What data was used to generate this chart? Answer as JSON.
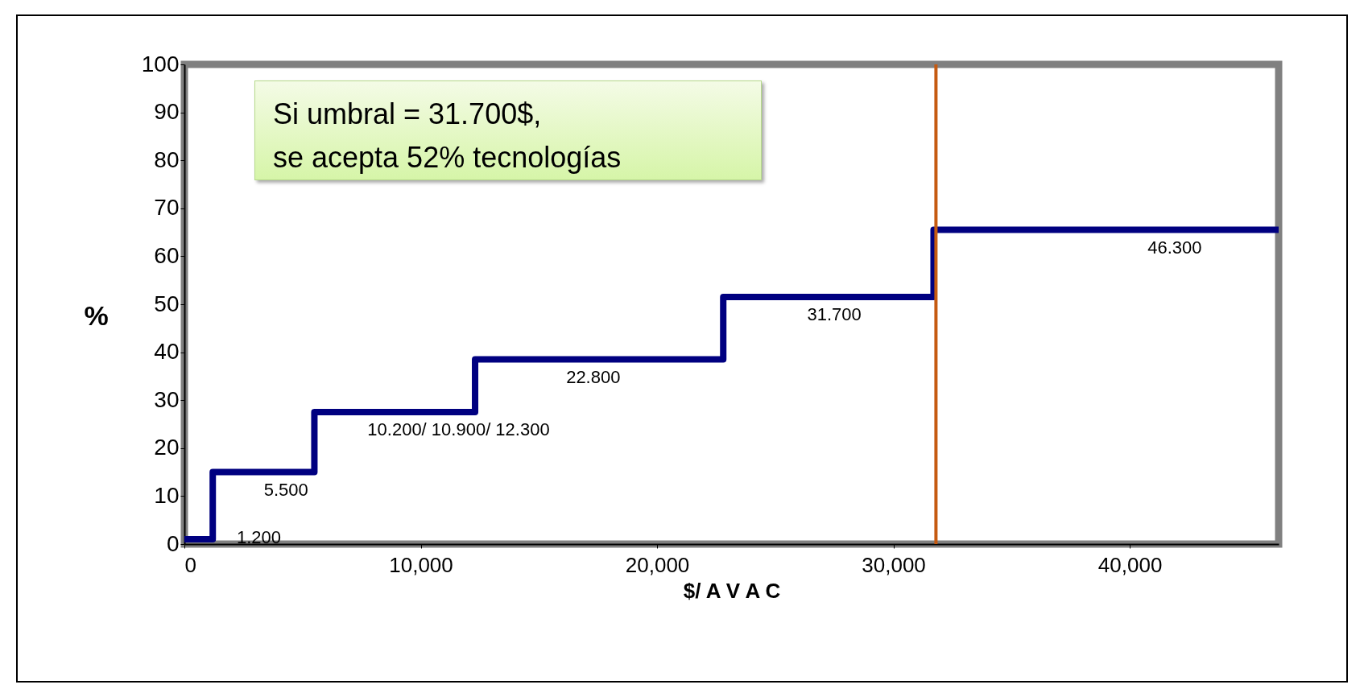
{
  "chart_data": {
    "type": "step",
    "xlabel": "$/ A V A C",
    "ylabel": "%",
    "x": [
      0,
      1200,
      5500,
      12300,
      22800,
      31700,
      46300
    ],
    "series": [
      {
        "color": "#000080",
        "values": [
          1,
          15,
          27.5,
          38.5,
          51.5,
          65.5,
          65.5
        ]
      }
    ],
    "xlim": [
      0,
      46300
    ],
    "ylim": [
      0,
      100
    ],
    "xticks": [
      0,
      {
        "value": 10000,
        "label": "10,000"
      },
      {
        "value": 20000,
        "label": "20,000"
      },
      {
        "value": 30000,
        "label": "30,000"
      },
      {
        "value": 40000,
        "label": "40,000"
      }
    ],
    "yticks": [
      0,
      10,
      20,
      30,
      40,
      50,
      60,
      70,
      80,
      90,
      100
    ],
    "grid": false,
    "marker": "none",
    "line_style": "solid",
    "ref_lines": [
      {
        "axis": "x",
        "value": 31800,
        "color": "#c55a11"
      }
    ],
    "annotations": [
      "Si umbral = 31.700$,\nse acepta 52% tecnologías",
      "1.200",
      {
        "text": "5.500",
        "x": 4300,
        "y": 15
      },
      {
        "text": "10.200/ 10.900/ 12.300",
        "x": 11600,
        "y": 27.5
      },
      {
        "text": "22.800",
        "x": 17300,
        "y": 38.5
      },
      {
        "text": "31.700",
        "x": 27500,
        "y": 51.5
      },
      {
        "text": "46.300",
        "x": 41900,
        "y": 65.5
      }
    ]
  }
}
